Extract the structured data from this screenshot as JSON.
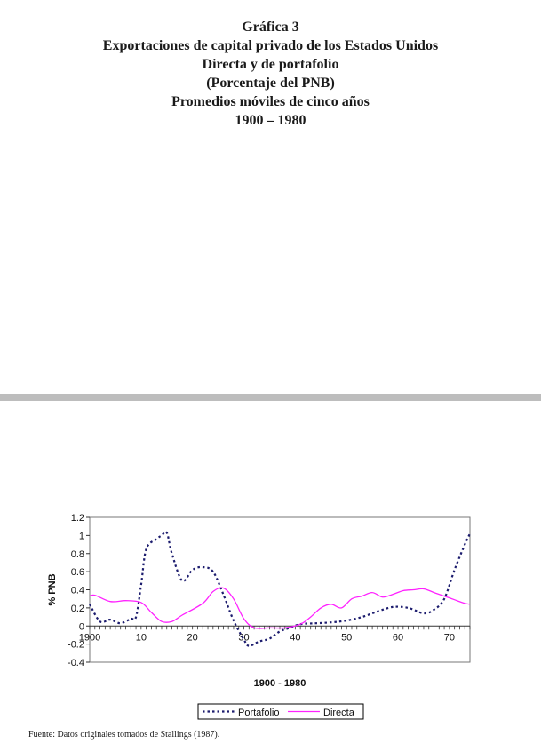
{
  "header": {
    "title": "Gráfica 3",
    "subtitle_lines": [
      "Exportaciones de capital privado de los Estados Unidos",
      "Directa y de portafolio",
      "(Porcentaje del PNB)",
      "Promedios móviles de cinco años",
      "1900 – 1980"
    ]
  },
  "footer": {
    "source": "Fuente: Datos originales tomados de Stallings (1987)."
  },
  "colors": {
    "portafolio": "#1c1c6e",
    "directa": "#ff22ff",
    "divider": "#bdbdbd"
  },
  "chart_data": {
    "type": "line",
    "xlabel": "1900 - 1980",
    "ylabel": "% PNB",
    "xlim": [
      1900,
      1974
    ],
    "ylim": [
      -0.4,
      1.2
    ],
    "x_ticks": [
      1900,
      1910,
      1920,
      1930,
      1940,
      1950,
      1960,
      1970
    ],
    "x_tick_labels": [
      "1900",
      "10",
      "20",
      "30",
      "40",
      "50",
      "60",
      "70"
    ],
    "y_ticks": [
      -0.4,
      -0.2,
      0,
      0.2,
      0.4,
      0.6,
      0.8,
      1,
      1.2
    ],
    "y_tick_labels": [
      "-0.4",
      "-0.2",
      "0",
      "0.2",
      "0.4",
      "0.6",
      "0.8",
      "1",
      "1.2"
    ],
    "grid": false,
    "legend_position": "bottom",
    "series": [
      {
        "name": "Portafolio",
        "style": "dotted",
        "points": [
          [
            1900,
            0.24
          ],
          [
            1902,
            0.05
          ],
          [
            1904,
            0.07
          ],
          [
            1906,
            0.03
          ],
          [
            1908,
            0.08
          ],
          [
            1909,
            0.1
          ],
          [
            1910,
            0.45
          ],
          [
            1911,
            0.85
          ],
          [
            1913,
            0.96
          ],
          [
            1914,
            1.0
          ],
          [
            1915,
            1.03
          ],
          [
            1916,
            0.8
          ],
          [
            1918,
            0.5
          ],
          [
            1920,
            0.62
          ],
          [
            1922,
            0.65
          ],
          [
            1924,
            0.6
          ],
          [
            1926,
            0.35
          ],
          [
            1928,
            0.06
          ],
          [
            1930,
            -0.15
          ],
          [
            1931,
            -0.22
          ],
          [
            1933,
            -0.17
          ],
          [
            1935,
            -0.14
          ],
          [
            1937,
            -0.06
          ],
          [
            1939,
            -0.02
          ],
          [
            1941,
            0.02
          ],
          [
            1944,
            0.03
          ],
          [
            1947,
            0.04
          ],
          [
            1950,
            0.06
          ],
          [
            1953,
            0.1
          ],
          [
            1956,
            0.16
          ],
          [
            1959,
            0.21
          ],
          [
            1962,
            0.2
          ],
          [
            1965,
            0.14
          ],
          [
            1967,
            0.18
          ],
          [
            1969,
            0.3
          ],
          [
            1971,
            0.62
          ],
          [
            1973,
            0.9
          ],
          [
            1974,
            1.02
          ]
        ]
      },
      {
        "name": "Directa",
        "style": "solid",
        "points": [
          [
            1900,
            0.33
          ],
          [
            1901,
            0.34
          ],
          [
            1904,
            0.27
          ],
          [
            1907,
            0.28
          ],
          [
            1910,
            0.26
          ],
          [
            1912,
            0.15
          ],
          [
            1914,
            0.05
          ],
          [
            1916,
            0.05
          ],
          [
            1918,
            0.12
          ],
          [
            1922,
            0.25
          ],
          [
            1924,
            0.38
          ],
          [
            1926,
            0.42
          ],
          [
            1928,
            0.3
          ],
          [
            1930,
            0.08
          ],
          [
            1932,
            -0.02
          ],
          [
            1935,
            -0.02
          ],
          [
            1938,
            -0.02
          ],
          [
            1941,
            0.02
          ],
          [
            1943,
            0.1
          ],
          [
            1945,
            0.2
          ],
          [
            1947,
            0.24
          ],
          [
            1949,
            0.2
          ],
          [
            1951,
            0.3
          ],
          [
            1953,
            0.33
          ],
          [
            1955,
            0.37
          ],
          [
            1957,
            0.32
          ],
          [
            1959,
            0.35
          ],
          [
            1961,
            0.39
          ],
          [
            1963,
            0.4
          ],
          [
            1965,
            0.41
          ],
          [
            1967,
            0.37
          ],
          [
            1969,
            0.33
          ],
          [
            1971,
            0.29
          ],
          [
            1973,
            0.25
          ],
          [
            1974,
            0.24
          ]
        ]
      }
    ]
  }
}
